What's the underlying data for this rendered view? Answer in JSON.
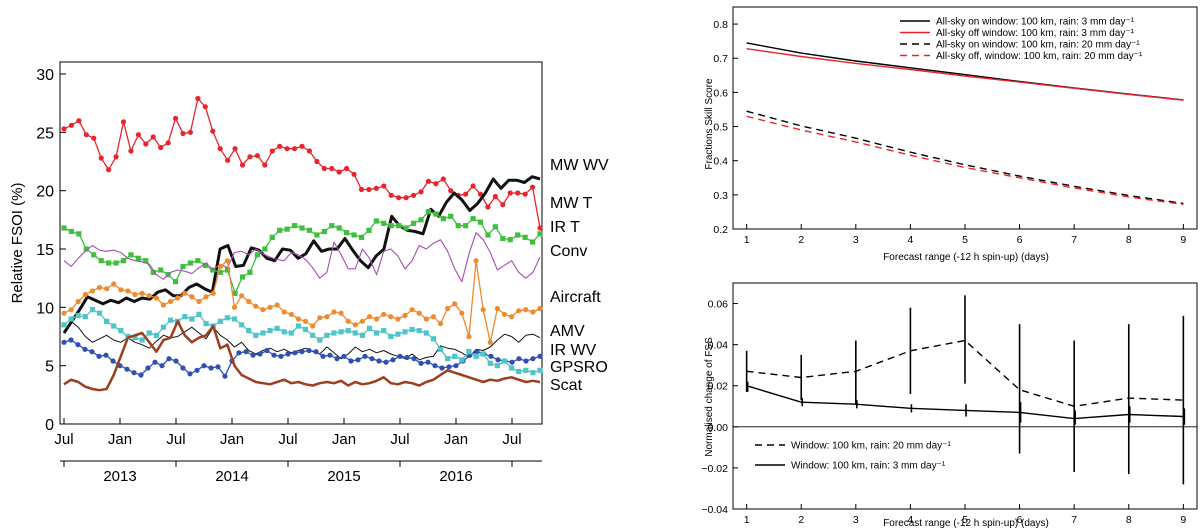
{
  "chart_data": [
    {
      "type": "line",
      "xlabel": "",
      "ylabel": "Relative FSOI (%)",
      "ylim": [
        0,
        30
      ],
      "yticks": [
        0,
        5,
        10,
        15,
        20,
        25,
        30
      ],
      "x_start": "2012-07",
      "x_months": 52,
      "xticks": [
        {
          "label": "Jul",
          "index": 0
        },
        {
          "label": "Jan",
          "index": 6
        },
        {
          "label": "Jul",
          "index": 12
        },
        {
          "label": "Jan",
          "index": 18
        },
        {
          "label": "Jul",
          "index": 24
        },
        {
          "label": "Jan",
          "index": 30
        },
        {
          "label": "Jul",
          "index": 36
        },
        {
          "label": "Jan",
          "index": 42
        },
        {
          "label": "Jul",
          "index": 48
        }
      ],
      "years": [
        {
          "label": "2013",
          "index": 6
        },
        {
          "label": "2014",
          "index": 18
        },
        {
          "label": "2015",
          "index": 30
        },
        {
          "label": "2016",
          "index": 42
        }
      ],
      "series": [
        {
          "name": "MW WV",
          "color": "#e8252c",
          "width": 1.3,
          "marker": "circle",
          "values": [
            25.3,
            25.6,
            26.0,
            24.8,
            24.5,
            22.8,
            21.8,
            22.9,
            25.9,
            23.4,
            24.8,
            24.0,
            24.6,
            23.7,
            24.1,
            26.2,
            24.9,
            25.0,
            27.9,
            27.2,
            25.1,
            23.6,
            22.6,
            23.6,
            22.2,
            22.9,
            23.0,
            22.2,
            23.4,
            23.8,
            23.6,
            23.6,
            23.8,
            23.4,
            22.5,
            21.9,
            21.9,
            21.6,
            21.9,
            21.4,
            20.1,
            20.1,
            20.2,
            20.4,
            19.6,
            19.4,
            19.4,
            19.6,
            19.9,
            20.8,
            20.6,
            21.0,
            20.0,
            19.6,
            19.7,
            20.4,
            19.7,
            18.6,
            19.5,
            18.8,
            19.8,
            19.8,
            19.7,
            20.3,
            16.8
          ]
        },
        {
          "name": "MW T",
          "color": "#111111",
          "width": 3,
          "marker": "none",
          "values": [
            7.8,
            8.8,
            9.8,
            10.9,
            10.6,
            10.3,
            10.6,
            10.4,
            10.8,
            10.5,
            10.8,
            10.7,
            11.3,
            11.5,
            11.0,
            11.0,
            11.7,
            12.0,
            11.6,
            11.3,
            15.0,
            15.3,
            13.5,
            13.6,
            15.1,
            14.9,
            14.2,
            14.0,
            15.0,
            14.9,
            14.2,
            14.6,
            15.7,
            14.8,
            15.0,
            15.0,
            15.9,
            14.9,
            14.0,
            13.4,
            14.4,
            15.0,
            17.8,
            17.0,
            16.6,
            16.5,
            16.3,
            18.4,
            17.8,
            19.0,
            19.8,
            19.2,
            18.3,
            18.9,
            19.8,
            21.0,
            20.2,
            20.9,
            20.9,
            20.7,
            21.2,
            21.0
          ]
        },
        {
          "name": "IR T",
          "color": "#3fbf3f",
          "width": 1.3,
          "marker": "square",
          "values": [
            16.8,
            16.5,
            16.3,
            15.0,
            14.5,
            14.0,
            13.8,
            13.8,
            14.0,
            14.5,
            14.2,
            14.0,
            13.0,
            13.2,
            12.8,
            12.2,
            13.5,
            13.8,
            14.0,
            13.6,
            13.2,
            13.0,
            13.2,
            11.2,
            12.6,
            13.0,
            14.5,
            15.0,
            16.0,
            16.6,
            16.7,
            17.0,
            16.8,
            16.6,
            16.2,
            16.5,
            17.0,
            16.8,
            16.4,
            16.2,
            16.0,
            16.6,
            17.4,
            17.2,
            17.0,
            17.0,
            16.8,
            17.2,
            17.5,
            18.2,
            18.0,
            17.6,
            17.8,
            17.0,
            17.0,
            17.6,
            17.3,
            16.2,
            16.9,
            15.9,
            15.8,
            16.2,
            16.0,
            15.6,
            16.3
          ]
        },
        {
          "name": "Conv",
          "color": "#a84bb5",
          "width": 1.1,
          "marker": "none",
          "values": [
            14.0,
            13.5,
            14.2,
            14.8,
            15.3,
            14.9,
            14.8,
            14.9,
            14.7,
            14.2,
            14.0,
            13.9,
            13.7,
            12.8,
            12.4,
            13.0,
            13.2,
            13.1,
            12.9,
            13.4,
            13.8,
            13.2,
            13.7,
            13.4,
            14.7,
            14.8,
            14.5,
            15.0,
            14.6,
            14.3,
            14.1,
            14.0,
            14.7,
            14.5,
            14.1,
            13.4,
            12.5,
            13.0,
            15.6,
            14.5,
            13.3,
            13.3,
            15.0,
            14.2,
            12.8,
            14.8,
            15.0,
            14.4,
            13.3,
            14.0,
            15.3,
            15.0,
            15.5,
            15.8,
            14.8,
            13.3,
            12.2,
            14.6,
            16.4,
            15.8,
            14.7,
            13.2,
            13.6,
            14.0,
            13.0,
            12.5,
            13.0,
            14.3
          ]
        },
        {
          "name": "Aircraft",
          "color": "#ef8a2e",
          "width": 1.3,
          "marker": "circle",
          "values": [
            9.5,
            9.8,
            10.5,
            11.1,
            11.4,
            11.7,
            11.6,
            12.0,
            11.5,
            11.4,
            11.1,
            11.2,
            11.0,
            10.8,
            10.2,
            10.5,
            10.8,
            11.2,
            10.9,
            10.5,
            10.9,
            11.2,
            13.5,
            14.0,
            10.0,
            11.0,
            10.5,
            10.1,
            9.8,
            10.0,
            10.2,
            9.6,
            9.4,
            9.0,
            8.8,
            8.4,
            9.1,
            9.2,
            9.6,
            9.5,
            8.8,
            8.5,
            8.8,
            9.2,
            9.0,
            9.4,
            9.2,
            9.0,
            9.3,
            9.8,
            9.5,
            9.0,
            9.2,
            8.6,
            9.9,
            10.3,
            9.5,
            7.5,
            14.0,
            9.8,
            7.0,
            9.9,
            9.4,
            9.2,
            9.7,
            9.8,
            9.6,
            9.9
          ]
        },
        {
          "name": "AMV",
          "color": "#111111",
          "width": 1,
          "marker": "none",
          "values": [
            7.9,
            8.8,
            8.3,
            7.5,
            7.0,
            7.3,
            7.6,
            7.2,
            7.0,
            7.4,
            7.0,
            6.8,
            6.5,
            7.1,
            7.6,
            7.4,
            7.5,
            7.9,
            8.3,
            7.8,
            7.3,
            8.3,
            7.6,
            7.2,
            6.6,
            7.0,
            6.3,
            6.0,
            6.3,
            6.5,
            6.2,
            6.4,
            6.1,
            6.3,
            6.5,
            6.2,
            6.0,
            6.6,
            6.1,
            5.6,
            6.0,
            6.6,
            6.2,
            6.4,
            6.1,
            6.3,
            6.0,
            5.8,
            5.6,
            6.0,
            5.5,
            5.7,
            5.8,
            6.7,
            6.5,
            6.4,
            6.1,
            5.7,
            6.4,
            6.3,
            6.6,
            7.2,
            7.7,
            7.5,
            7.0,
            7.6,
            7.7,
            7.4
          ]
        },
        {
          "name": "IR WV",
          "color": "#2f4fb5",
          "width": 1.3,
          "marker": "circle",
          "values": [
            7.0,
            7.2,
            6.8,
            6.4,
            6.2,
            5.8,
            5.9,
            5.4,
            5.0,
            4.7,
            4.4,
            4.2,
            4.8,
            5.3,
            5.0,
            5.6,
            5.4,
            4.8,
            4.3,
            4.6,
            5.0,
            4.8,
            4.9,
            4.1,
            5.4,
            6.1,
            6.2,
            5.9,
            6.0,
            6.3,
            5.9,
            5.8,
            6.0,
            6.1,
            6.2,
            6.3,
            6.2,
            5.8,
            5.9,
            5.6,
            5.8,
            5.4,
            5.5,
            5.8,
            5.6,
            5.4,
            5.3,
            5.5,
            5.8,
            5.7,
            5.6,
            5.2,
            5.3,
            5.0,
            4.8,
            4.9,
            5.0,
            5.4,
            5.9,
            6.2,
            6.0,
            5.8,
            5.5,
            5.4,
            5.3,
            5.6,
            5.4,
            5.6,
            5.8
          ]
        },
        {
          "name": "GPSRO",
          "color": "#4ec5c8",
          "width": 1.3,
          "marker": "square",
          "values": [
            8.5,
            9.0,
            9.3,
            9.2,
            9.8,
            9.5,
            8.8,
            8.4,
            8.0,
            7.5,
            7.4,
            7.2,
            7.8,
            7.6,
            8.3,
            8.9,
            8.8,
            9.2,
            9.0,
            9.4,
            8.6,
            8.4,
            8.8,
            9.1,
            9.0,
            8.5,
            8.0,
            7.6,
            7.8,
            8.0,
            8.2,
            7.9,
            7.8,
            8.4,
            8.1,
            7.6,
            7.2,
            7.6,
            7.8,
            7.9,
            8.0,
            7.8,
            7.6,
            8.2,
            7.8,
            8.0,
            7.5,
            7.7,
            7.9,
            8.1,
            8.0,
            7.8,
            7.3,
            6.4,
            5.6,
            5.8,
            5.5,
            6.2,
            5.8,
            6.0,
            5.2,
            5.0,
            5.4,
            4.8,
            4.5,
            4.6,
            4.4,
            4.6
          ]
        },
        {
          "name": "Scat",
          "color": "#9b3f1f",
          "width": 2.5,
          "marker": "none",
          "values": [
            3.4,
            3.8,
            3.6,
            3.2,
            3.0,
            2.9,
            3.0,
            4.2,
            5.8,
            7.4,
            7.6,
            7.8,
            7.0,
            6.2,
            7.2,
            7.4,
            8.8,
            7.6,
            7.0,
            7.4,
            7.6,
            8.4,
            6.5,
            6.8,
            5.0,
            4.2,
            3.9,
            3.6,
            3.5,
            3.4,
            3.6,
            3.8,
            3.5,
            3.6,
            3.4,
            3.3,
            3.5,
            3.6,
            3.5,
            3.7,
            3.3,
            3.6,
            3.4,
            3.5,
            3.7,
            4.0,
            3.5,
            3.4,
            3.6,
            3.5,
            3.3,
            3.6,
            3.8,
            4.2,
            4.6,
            4.4,
            4.2,
            4.0,
            3.8,
            3.6,
            3.8,
            3.7,
            3.9,
            4.0,
            3.8,
            3.6,
            3.7,
            3.6
          ]
        }
      ]
    },
    {
      "type": "line",
      "xlabel": "Forecast range (-12 h spin-up) (days)",
      "ylabel": "Fractions Skill Score",
      "xlim": [
        0.75,
        9.25
      ],
      "ylim": [
        0.2,
        0.85
      ],
      "xticks": [
        1,
        2,
        3,
        4,
        5,
        6,
        7,
        8,
        9
      ],
      "yticks": [
        0.2,
        0.3,
        0.4,
        0.5,
        0.6,
        0.7,
        0.8
      ],
      "ytick_labels": [
        "0.2",
        "0.3",
        "0.4",
        "0.5",
        "0.6",
        "0.7",
        "0.8"
      ],
      "legend": "top-right",
      "series": [
        {
          "name": "All-sky on window: 100 km, rain: 3 mm day⁻¹",
          "color": "#000000",
          "dash": "",
          "x": [
            1,
            2,
            3,
            4,
            5,
            6,
            7,
            8,
            9
          ],
          "values": [
            0.745,
            0.715,
            0.692,
            0.672,
            0.652,
            0.632,
            0.613,
            0.595,
            0.578
          ]
        },
        {
          "name": "All-sky off window: 100 km, rain: 3 mm day⁻¹",
          "color": "#e8252c",
          "dash": "",
          "x": [
            1,
            2,
            3,
            4,
            5,
            6,
            7,
            8,
            9
          ],
          "values": [
            0.728,
            0.705,
            0.685,
            0.667,
            0.648,
            0.63,
            0.612,
            0.594,
            0.577
          ]
        },
        {
          "name": "All-sky on window: 100 km, rain: 20 mm day⁻¹",
          "color": "#000000",
          "dash": "7,5",
          "x": [
            1,
            2,
            3,
            4,
            5,
            6,
            7,
            8,
            9
          ],
          "values": [
            0.545,
            0.502,
            0.466,
            0.425,
            0.388,
            0.355,
            0.325,
            0.298,
            0.275
          ]
        },
        {
          "name": "All-sky off, window: 100 km, rain: 20 mm day⁻¹",
          "color": "#e8252c",
          "dash": "7,5",
          "x": [
            1,
            2,
            3,
            4,
            5,
            6,
            7,
            8,
            9
          ],
          "values": [
            0.53,
            0.49,
            0.455,
            0.416,
            0.38,
            0.35,
            0.32,
            0.294,
            0.272
          ]
        }
      ]
    },
    {
      "type": "line",
      "xlabel": "Forecast range (-12 h spin-up) (days)",
      "ylabel": "Normalised change of FSS",
      "xlim": [
        0.75,
        9.25
      ],
      "ylim": [
        -0.04,
        0.07
      ],
      "xticks": [
        1,
        2,
        3,
        4,
        5,
        6,
        7,
        8,
        9
      ],
      "yticks": [
        -0.04,
        -0.02,
        0.0,
        0.02,
        0.04,
        0.06
      ],
      "ytick_labels": [
        "−0.04",
        "−0.02",
        "0.00",
        "0.02",
        "0.04",
        "0.06"
      ],
      "legend": "bottom-left",
      "series": [
        {
          "name": "Window: 100 km, rain: 20 mm day⁻¹",
          "color": "#000000",
          "dash": "7,5",
          "x": [
            1,
            2,
            3,
            4,
            5,
            6,
            7,
            8,
            9
          ],
          "values": [
            0.027,
            0.024,
            0.027,
            0.037,
            0.042,
            0.018,
            0.01,
            0.014,
            0.013
          ],
          "err_low": [
            0.017,
            0.013,
            0.011,
            0.016,
            0.021,
            -0.013,
            -0.022,
            -0.023,
            -0.028
          ],
          "err_high": [
            0.037,
            0.035,
            0.042,
            0.058,
            0.064,
            0.05,
            0.042,
            0.05,
            0.054
          ]
        },
        {
          "name": "Window: 100 km, rain: 3 mm day⁻¹",
          "color": "#000000",
          "dash": "",
          "x": [
            1,
            2,
            3,
            4,
            5,
            6,
            7,
            8,
            9
          ],
          "values": [
            0.02,
            0.012,
            0.011,
            0.009,
            0.008,
            0.007,
            0.004,
            0.006,
            0.005
          ],
          "err_low": [
            0.017,
            0.01,
            0.009,
            0.007,
            0.005,
            0.002,
            0.001,
            0.002,
            0.001
          ],
          "err_high": [
            0.022,
            0.014,
            0.013,
            0.011,
            0.011,
            0.012,
            0.008,
            0.01,
            0.009
          ]
        }
      ]
    }
  ]
}
